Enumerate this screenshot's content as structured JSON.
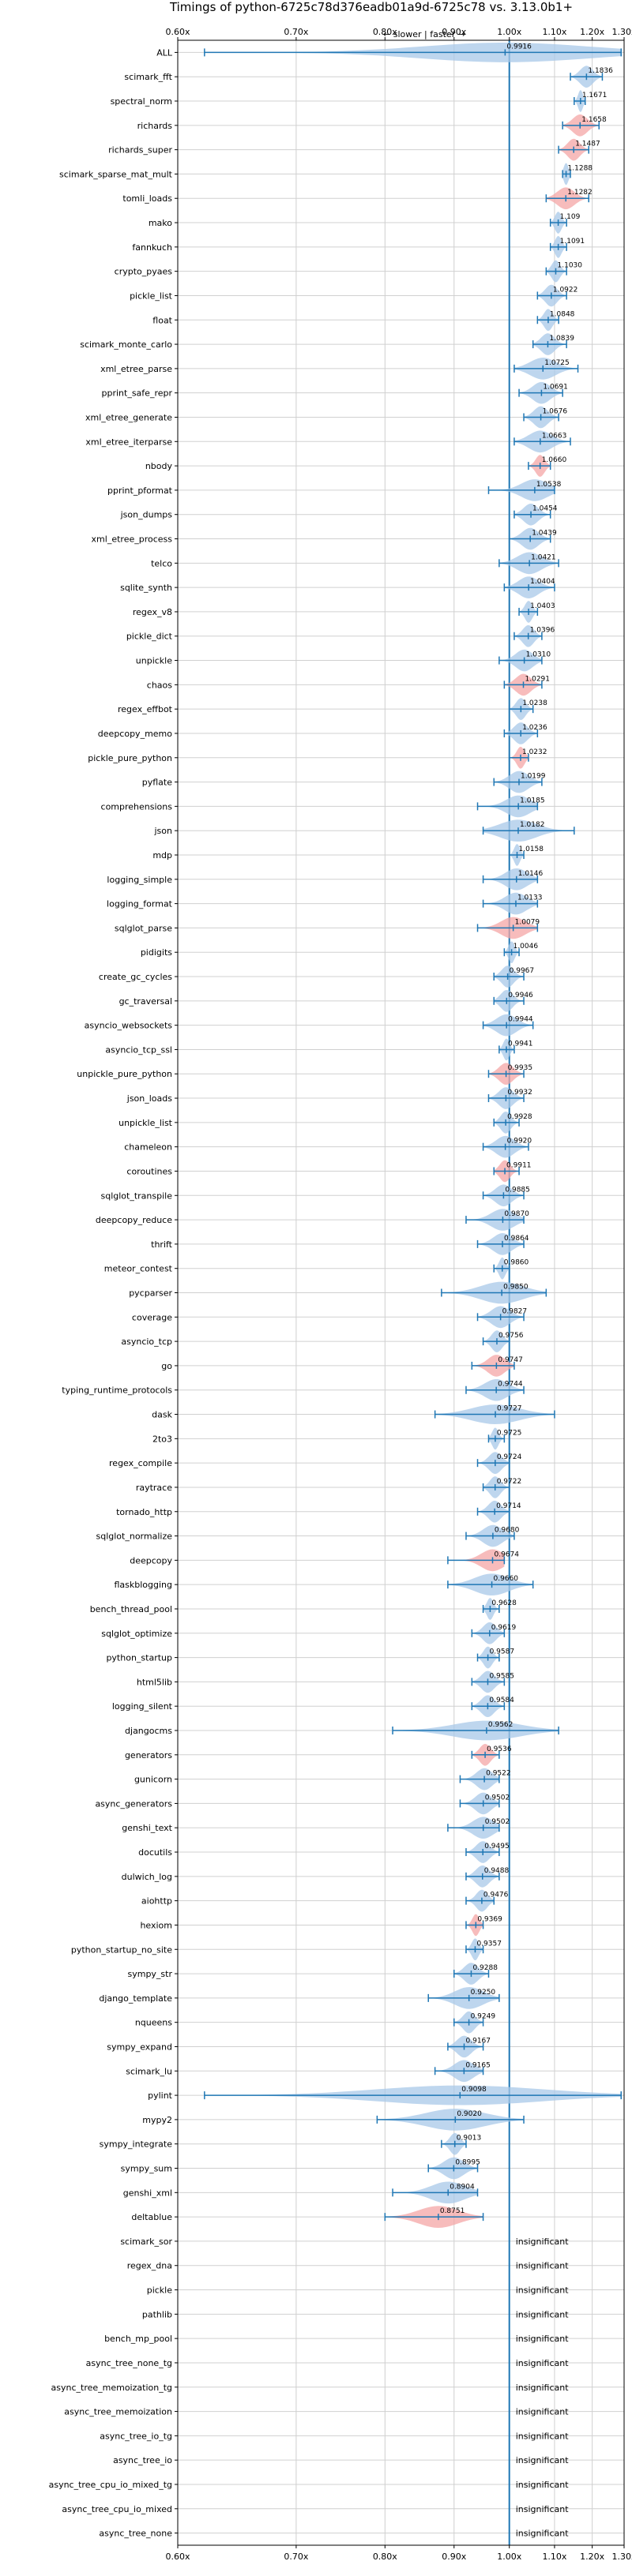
{
  "chart_data": {
    "type": "violin",
    "title": "Timings of python-6725c78d376eadb01a9d-6725c78 vs. 3.13.0b1+",
    "direction_label": "← slower | faster →",
    "x_scale": "reciprocal",
    "xlim": [
      0.6,
      1.3
    ],
    "x_ticks": [
      "0.60x",
      "0.70x",
      "0.80x",
      "0.90x",
      "1.00x",
      "1.10x",
      "1.20x",
      "1.30x"
    ],
    "x_tick_values": [
      0.6,
      0.7,
      0.8,
      0.9,
      1.0,
      1.1,
      1.2,
      1.3
    ],
    "reference_line": 1.0,
    "grid": true,
    "colors": {
      "faster": "#a8c8e8",
      "slower": "#f4a6a6",
      "line": "#1f77b4",
      "grid": "#d0d0d0"
    },
    "insignificant_label": "insignificant",
    "benchmarks": [
      {
        "name": "ALL",
        "value": 0.9916,
        "lo": 0.62,
        "hi": 1.29,
        "color": "blue",
        "label": "0.9916"
      },
      {
        "name": "scimark_fft",
        "value": 1.1836,
        "lo": 1.14,
        "hi": 1.23,
        "color": "blue",
        "label": "1.1836"
      },
      {
        "name": "spectral_norm",
        "value": 1.1671,
        "lo": 1.15,
        "hi": 1.18,
        "color": "blue",
        "label": "1.1671"
      },
      {
        "name": "richards",
        "value": 1.1658,
        "lo": 1.12,
        "hi": 1.22,
        "color": "red",
        "label": "1.1658"
      },
      {
        "name": "richards_super",
        "value": 1.1487,
        "lo": 1.11,
        "hi": 1.19,
        "color": "red",
        "label": "1.1487"
      },
      {
        "name": "scimark_sparse_mat_mult",
        "value": 1.1288,
        "lo": 1.12,
        "hi": 1.14,
        "color": "blue",
        "label": "1.1288"
      },
      {
        "name": "tomli_loads",
        "value": 1.1282,
        "lo": 1.08,
        "hi": 1.19,
        "color": "red",
        "label": "1.1282"
      },
      {
        "name": "mako",
        "value": 1.109,
        "lo": 1.09,
        "hi": 1.13,
        "color": "blue",
        "label": "1.109"
      },
      {
        "name": "fannkuch",
        "value": 1.1091,
        "lo": 1.09,
        "hi": 1.13,
        "color": "blue",
        "label": "1.1091"
      },
      {
        "name": "crypto_pyaes",
        "value": 1.103,
        "lo": 1.08,
        "hi": 1.13,
        "color": "blue",
        "label": "1.1030"
      },
      {
        "name": "pickle_list",
        "value": 1.0922,
        "lo": 1.06,
        "hi": 1.13,
        "color": "blue",
        "label": "1.0922"
      },
      {
        "name": "float",
        "value": 1.0848,
        "lo": 1.06,
        "hi": 1.11,
        "color": "blue",
        "label": "1.0848"
      },
      {
        "name": "scimark_monte_carlo",
        "value": 1.0839,
        "lo": 1.05,
        "hi": 1.13,
        "color": "blue",
        "label": "1.0839"
      },
      {
        "name": "xml_etree_parse",
        "value": 1.0725,
        "lo": 1.01,
        "hi": 1.16,
        "color": "blue",
        "label": "1.0725"
      },
      {
        "name": "pprint_safe_repr",
        "value": 1.0691,
        "lo": 1.02,
        "hi": 1.12,
        "color": "blue",
        "label": "1.0691"
      },
      {
        "name": "xml_etree_generate",
        "value": 1.0676,
        "lo": 1.03,
        "hi": 1.11,
        "color": "blue",
        "label": "1.0676"
      },
      {
        "name": "xml_etree_iterparse",
        "value": 1.0663,
        "lo": 1.01,
        "hi": 1.14,
        "color": "blue",
        "label": "1.0663"
      },
      {
        "name": "nbody",
        "value": 1.066,
        "lo": 1.04,
        "hi": 1.09,
        "color": "red",
        "label": "1.0660"
      },
      {
        "name": "pprint_pformat",
        "value": 1.0538,
        "lo": 0.96,
        "hi": 1.1,
        "color": "blue",
        "label": "1.0538"
      },
      {
        "name": "json_dumps",
        "value": 1.0454,
        "lo": 1.01,
        "hi": 1.09,
        "color": "blue",
        "label": "1.0454"
      },
      {
        "name": "xml_etree_process",
        "value": 1.0439,
        "lo": 1.0,
        "hi": 1.09,
        "color": "blue",
        "label": "1.0439"
      },
      {
        "name": "telco",
        "value": 1.0421,
        "lo": 0.98,
        "hi": 1.11,
        "color": "blue",
        "label": "1.0421"
      },
      {
        "name": "sqlite_synth",
        "value": 1.0404,
        "lo": 0.99,
        "hi": 1.1,
        "color": "blue",
        "label": "1.0404"
      },
      {
        "name": "regex_v8",
        "value": 1.0403,
        "lo": 1.02,
        "hi": 1.06,
        "color": "blue",
        "label": "1.0403"
      },
      {
        "name": "pickle_dict",
        "value": 1.0396,
        "lo": 1.01,
        "hi": 1.07,
        "color": "blue",
        "label": "1.0396"
      },
      {
        "name": "unpickle",
        "value": 1.031,
        "lo": 0.98,
        "hi": 1.07,
        "color": "blue",
        "label": "1.0310"
      },
      {
        "name": "chaos",
        "value": 1.0291,
        "lo": 0.99,
        "hi": 1.07,
        "color": "red",
        "label": "1.0291"
      },
      {
        "name": "regex_effbot",
        "value": 1.0238,
        "lo": 1.0,
        "hi": 1.05,
        "color": "blue",
        "label": "1.0238"
      },
      {
        "name": "deepcopy_memo",
        "value": 1.0236,
        "lo": 0.99,
        "hi": 1.06,
        "color": "blue",
        "label": "1.0236"
      },
      {
        "name": "pickle_pure_python",
        "value": 1.0232,
        "lo": 1.0,
        "hi": 1.04,
        "color": "red",
        "label": "1.0232"
      },
      {
        "name": "pyflate",
        "value": 1.0199,
        "lo": 0.97,
        "hi": 1.07,
        "color": "blue",
        "label": "1.0199"
      },
      {
        "name": "comprehensions",
        "value": 1.0185,
        "lo": 0.94,
        "hi": 1.06,
        "color": "blue",
        "label": "1.0185"
      },
      {
        "name": "json",
        "value": 1.0182,
        "lo": 0.95,
        "hi": 1.15,
        "color": "blue",
        "label": "1.0182"
      },
      {
        "name": "mdp",
        "value": 1.0158,
        "lo": 1.0,
        "hi": 1.03,
        "color": "blue",
        "label": "1.0158"
      },
      {
        "name": "logging_simple",
        "value": 1.0146,
        "lo": 0.95,
        "hi": 1.06,
        "color": "blue",
        "label": "1.0146"
      },
      {
        "name": "logging_format",
        "value": 1.0133,
        "lo": 0.95,
        "hi": 1.06,
        "color": "blue",
        "label": "1.0133"
      },
      {
        "name": "sqlglot_parse",
        "value": 1.0079,
        "lo": 0.94,
        "hi": 1.06,
        "color": "red",
        "label": "1.0079"
      },
      {
        "name": "pidigits",
        "value": 1.0046,
        "lo": 0.99,
        "hi": 1.02,
        "color": "blue",
        "label": "1.0046"
      },
      {
        "name": "create_gc_cycles",
        "value": 0.9967,
        "lo": 0.97,
        "hi": 1.03,
        "color": "blue",
        "label": "0.9967"
      },
      {
        "name": "gc_traversal",
        "value": 0.9946,
        "lo": 0.97,
        "hi": 1.03,
        "color": "blue",
        "label": "0.9946"
      },
      {
        "name": "asyncio_websockets",
        "value": 0.9944,
        "lo": 0.95,
        "hi": 1.05,
        "color": "blue",
        "label": "0.9944"
      },
      {
        "name": "asyncio_tcp_ssl",
        "value": 0.9941,
        "lo": 0.98,
        "hi": 1.01,
        "color": "blue",
        "label": "0.9941"
      },
      {
        "name": "unpickle_pure_python",
        "value": 0.9935,
        "lo": 0.96,
        "hi": 1.03,
        "color": "red",
        "label": "0.9935"
      },
      {
        "name": "json_loads",
        "value": 0.9932,
        "lo": 0.96,
        "hi": 1.03,
        "color": "blue",
        "label": "0.9932"
      },
      {
        "name": "unpickle_list",
        "value": 0.9928,
        "lo": 0.97,
        "hi": 1.02,
        "color": "blue",
        "label": "0.9928"
      },
      {
        "name": "chameleon",
        "value": 0.992,
        "lo": 0.95,
        "hi": 1.04,
        "color": "blue",
        "label": "0.9920"
      },
      {
        "name": "coroutines",
        "value": 0.9911,
        "lo": 0.97,
        "hi": 1.02,
        "color": "red",
        "label": "0.9911"
      },
      {
        "name": "sqlglot_transpile",
        "value": 0.9885,
        "lo": 0.95,
        "hi": 1.03,
        "color": "blue",
        "label": "0.9885"
      },
      {
        "name": "deepcopy_reduce",
        "value": 0.987,
        "lo": 0.92,
        "hi": 1.03,
        "color": "blue",
        "label": "0.9870"
      },
      {
        "name": "thrift",
        "value": 0.9864,
        "lo": 0.94,
        "hi": 1.03,
        "color": "blue",
        "label": "0.9864"
      },
      {
        "name": "meteor_contest",
        "value": 0.986,
        "lo": 0.97,
        "hi": 1.0,
        "color": "blue",
        "label": "0.9860"
      },
      {
        "name": "pycparser",
        "value": 0.985,
        "lo": 0.88,
        "hi": 1.08,
        "color": "blue",
        "label": "0.9850"
      },
      {
        "name": "coverage",
        "value": 0.9827,
        "lo": 0.94,
        "hi": 1.03,
        "color": "blue",
        "label": "0.9827"
      },
      {
        "name": "asyncio_tcp",
        "value": 0.9756,
        "lo": 0.95,
        "hi": 1.0,
        "color": "blue",
        "label": "0.9756"
      },
      {
        "name": "go",
        "value": 0.9747,
        "lo": 0.93,
        "hi": 1.01,
        "color": "red",
        "label": "0.9747"
      },
      {
        "name": "typing_runtime_protocols",
        "value": 0.9744,
        "lo": 0.92,
        "hi": 1.03,
        "color": "blue",
        "label": "0.9744"
      },
      {
        "name": "dask",
        "value": 0.9727,
        "lo": 0.87,
        "hi": 1.1,
        "color": "blue",
        "label": "0.9727"
      },
      {
        "name": "2to3",
        "value": 0.9725,
        "lo": 0.96,
        "hi": 0.99,
        "color": "blue",
        "label": "0.9725"
      },
      {
        "name": "regex_compile",
        "value": 0.9724,
        "lo": 0.94,
        "hi": 1.0,
        "color": "blue",
        "label": "0.9724"
      },
      {
        "name": "raytrace",
        "value": 0.9722,
        "lo": 0.95,
        "hi": 1.0,
        "color": "blue",
        "label": "0.9722"
      },
      {
        "name": "tornado_http",
        "value": 0.9714,
        "lo": 0.94,
        "hi": 1.0,
        "color": "blue",
        "label": "0.9714"
      },
      {
        "name": "sqlglot_normalize",
        "value": 0.968,
        "lo": 0.92,
        "hi": 1.01,
        "color": "blue",
        "label": "0.9680"
      },
      {
        "name": "deepcopy",
        "value": 0.9674,
        "lo": 0.89,
        "hi": 0.99,
        "color": "red",
        "label": "0.9674"
      },
      {
        "name": "flaskblogging",
        "value": 0.966,
        "lo": 0.89,
        "hi": 1.05,
        "color": "blue",
        "label": "0.9660"
      },
      {
        "name": "bench_thread_pool",
        "value": 0.9628,
        "lo": 0.95,
        "hi": 0.98,
        "color": "blue",
        "label": "0.9628"
      },
      {
        "name": "sqlglot_optimize",
        "value": 0.9619,
        "lo": 0.93,
        "hi": 0.99,
        "color": "blue",
        "label": "0.9619"
      },
      {
        "name": "python_startup",
        "value": 0.9587,
        "lo": 0.94,
        "hi": 0.98,
        "color": "blue",
        "label": "0.9587"
      },
      {
        "name": "html5lib",
        "value": 0.9585,
        "lo": 0.93,
        "hi": 0.99,
        "color": "blue",
        "label": "0.9585"
      },
      {
        "name": "logging_silent",
        "value": 0.9584,
        "lo": 0.93,
        "hi": 0.99,
        "color": "blue",
        "label": "0.9584"
      },
      {
        "name": "djangocms",
        "value": 0.9562,
        "lo": 0.81,
        "hi": 1.11,
        "color": "blue",
        "label": "0.9562"
      },
      {
        "name": "generators",
        "value": 0.9536,
        "lo": 0.93,
        "hi": 0.98,
        "color": "red",
        "label": "0.9536"
      },
      {
        "name": "gunicorn",
        "value": 0.9522,
        "lo": 0.91,
        "hi": 0.98,
        "color": "blue",
        "label": "0.9522"
      },
      {
        "name": "async_generators",
        "value": 0.9502,
        "lo": 0.91,
        "hi": 0.98,
        "color": "blue",
        "label": "0.9502"
      },
      {
        "name": "genshi_text",
        "value": 0.9502,
        "lo": 0.89,
        "hi": 0.98,
        "color": "blue",
        "label": "0.9502"
      },
      {
        "name": "docutils",
        "value": 0.9495,
        "lo": 0.92,
        "hi": 0.98,
        "color": "blue",
        "label": "0.9495"
      },
      {
        "name": "dulwich_log",
        "value": 0.9488,
        "lo": 0.92,
        "hi": 0.98,
        "color": "blue",
        "label": "0.9488"
      },
      {
        "name": "aiohttp",
        "value": 0.9476,
        "lo": 0.92,
        "hi": 0.97,
        "color": "blue",
        "label": "0.9476"
      },
      {
        "name": "hexiom",
        "value": 0.9369,
        "lo": 0.92,
        "hi": 0.95,
        "color": "red",
        "label": "0.9369"
      },
      {
        "name": "python_startup_no_site",
        "value": 0.9357,
        "lo": 0.92,
        "hi": 0.95,
        "color": "blue",
        "label": "0.9357"
      },
      {
        "name": "sympy_str",
        "value": 0.9288,
        "lo": 0.9,
        "hi": 0.96,
        "color": "blue",
        "label": "0.9288"
      },
      {
        "name": "django_template",
        "value": 0.925,
        "lo": 0.86,
        "hi": 0.98,
        "color": "blue",
        "label": "0.9250"
      },
      {
        "name": "nqueens",
        "value": 0.9249,
        "lo": 0.9,
        "hi": 0.95,
        "color": "blue",
        "label": "0.9249"
      },
      {
        "name": "sympy_expand",
        "value": 0.9167,
        "lo": 0.89,
        "hi": 0.95,
        "color": "blue",
        "label": "0.9167"
      },
      {
        "name": "scimark_lu",
        "value": 0.9165,
        "lo": 0.87,
        "hi": 0.95,
        "color": "blue",
        "label": "0.9165"
      },
      {
        "name": "pylint",
        "value": 0.9098,
        "lo": 0.62,
        "hi": 1.29,
        "color": "blue",
        "label": "0.9098"
      },
      {
        "name": "mypy2",
        "value": 0.902,
        "lo": 0.79,
        "hi": 1.03,
        "color": "blue",
        "label": "0.9020"
      },
      {
        "name": "sympy_integrate",
        "value": 0.9013,
        "lo": 0.88,
        "hi": 0.92,
        "color": "blue",
        "label": "0.9013"
      },
      {
        "name": "sympy_sum",
        "value": 0.8995,
        "lo": 0.86,
        "hi": 0.94,
        "color": "blue",
        "label": "0.8995"
      },
      {
        "name": "genshi_xml",
        "value": 0.8904,
        "lo": 0.81,
        "hi": 0.94,
        "color": "blue",
        "label": "0.8904"
      },
      {
        "name": "deltablue",
        "value": 0.8751,
        "lo": 0.8,
        "hi": 0.95,
        "color": "red",
        "label": "0.8751"
      },
      {
        "name": "scimark_sor",
        "value": null
      },
      {
        "name": "regex_dna",
        "value": null
      },
      {
        "name": "pickle",
        "value": null
      },
      {
        "name": "pathlib",
        "value": null
      },
      {
        "name": "bench_mp_pool",
        "value": null
      },
      {
        "name": "async_tree_none_tg",
        "value": null
      },
      {
        "name": "async_tree_memoization_tg",
        "value": null
      },
      {
        "name": "async_tree_memoization",
        "value": null
      },
      {
        "name": "async_tree_io_tg",
        "value": null
      },
      {
        "name": "async_tree_io",
        "value": null
      },
      {
        "name": "async_tree_cpu_io_mixed_tg",
        "value": null
      },
      {
        "name": "async_tree_cpu_io_mixed",
        "value": null
      },
      {
        "name": "async_tree_none",
        "value": null
      }
    ]
  }
}
